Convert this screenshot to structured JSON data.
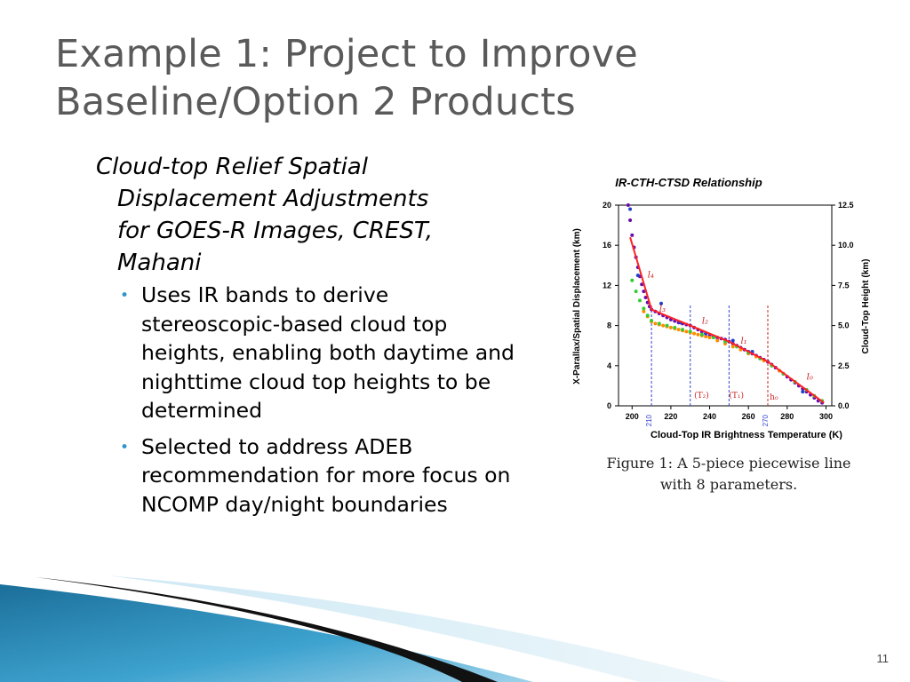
{
  "slide": {
    "title_line1": "Example 1: Project to Improve",
    "title_line2": "Baseline/Option 2 Products",
    "heading_lines": [
      "Cloud-top Relief Spatial",
      "Displacement Adjustments",
      "for GOES-R Images, CREST,",
      "Mahani"
    ],
    "bullets": [
      "Uses IR bands to derive stereoscopic-based cloud top heights, enabling both daytime and nighttime cloud top heights to be determined",
      "Selected to address ADEB recommendation for more focus on NCOMP day/night boundaries"
    ],
    "page_number": "11",
    "accent_color": "#2e95c9"
  },
  "figure": {
    "caption_line1": "Figure 1: A 5-piece piecewise line",
    "caption_line2": "with 8 parameters."
  },
  "chart_data": {
    "type": "scatter",
    "title": "IR-CTH-CTSD Relationship",
    "xlabel": "Cloud-Top IR Brightness Temperature (K)",
    "ylabel": "X-Parallax/Spatial Displacement (km)",
    "y2label": "Cloud-Top Height (km)",
    "xlim": [
      193,
      303
    ],
    "ylim": [
      0,
      20
    ],
    "y2lim": [
      0,
      12.5
    ],
    "x_ticks": [
      "200",
      "220",
      "240",
      "260",
      "280",
      "300"
    ],
    "y_ticks": [
      "0",
      "4",
      "8",
      "12",
      "16",
      "20"
    ],
    "y2_ticks": [
      "0.0",
      "2.5",
      "5.0",
      "7.5",
      "10.0",
      "12.5"
    ],
    "vline_labels": [
      "210",
      "270"
    ],
    "region_labels": [
      "(T₂)",
      "(T₁)",
      "h₀"
    ],
    "segment_labels": [
      "l₄",
      "l₃",
      "l₂",
      "l₁",
      "l₀"
    ],
    "vlines": [
      {
        "x": 210,
        "color": "#3344cc",
        "dash": true
      },
      {
        "x": 230,
        "color": "#3344cc",
        "dash": true
      },
      {
        "x": 250,
        "color": "#3344cc",
        "dash": true
      },
      {
        "x": 270,
        "color": "#cc2222",
        "dash": true
      }
    ],
    "piecewise_line": {
      "x": [
        199,
        210,
        230,
        250,
        270,
        299
      ],
      "y": [
        16.8,
        9.6,
        8.0,
        6.4,
        4.4,
        0.3
      ],
      "color": "#ff2222"
    },
    "series": [
      {
        "color": "#6a0dad",
        "x": [
          198,
          199,
          200,
          201,
          202,
          203,
          204,
          205,
          206,
          207,
          208,
          209,
          210,
          212,
          214,
          216,
          218,
          220,
          222,
          224,
          226,
          228,
          230,
          232,
          234,
          236,
          238,
          240,
          242,
          244,
          246,
          248,
          250,
          252,
          254,
          256,
          258,
          260,
          262,
          264,
          266,
          268,
          270,
          272,
          274,
          276,
          278,
          280,
          282,
          284,
          286,
          288,
          290,
          292,
          294,
          296,
          298
        ],
        "y": [
          20,
          18.5,
          17,
          15.8,
          14.8,
          13.8,
          12.9,
          12.1,
          11.4,
          10.8,
          10.3,
          9.9,
          9.6,
          9.4,
          9.2,
          9.0,
          8.8,
          8.6,
          8.45,
          8.3,
          8.2,
          8.1,
          8.0,
          7.8,
          7.6,
          7.4,
          7.2,
          7.0,
          6.9,
          6.8,
          6.7,
          6.6,
          6.4,
          6.2,
          6.0,
          5.8,
          5.6,
          5.4,
          5.2,
          5.0,
          4.8,
          4.6,
          4.4,
          4.1,
          3.8,
          3.5,
          3.2,
          2.9,
          2.6,
          2.3,
          2.0,
          1.7,
          1.4,
          1.1,
          0.8,
          0.5,
          0.3
        ]
      },
      {
        "color": "#ff8c00",
        "x": [
          206,
          208,
          210,
          212,
          214,
          216,
          218,
          220,
          222,
          224,
          226,
          228,
          230,
          232,
          234,
          236,
          238,
          240,
          244,
          248,
          252,
          256,
          260,
          264,
          268,
          272,
          276
        ],
        "y": [
          9.4,
          8.9,
          8.4,
          8.2,
          8.1,
          8.0,
          7.9,
          7.8,
          7.7,
          7.6,
          7.5,
          7.4,
          7.3,
          7.2,
          7.1,
          7.0,
          6.9,
          6.8,
          6.5,
          6.2,
          5.9,
          5.6,
          5.2,
          4.9,
          4.5,
          4.0,
          3.5
        ]
      },
      {
        "color": "#33cc33",
        "x": [
          200,
          202,
          204,
          206,
          208,
          210,
          214,
          218,
          222,
          226,
          230,
          236,
          242,
          248,
          254,
          260,
          266,
          272,
          278,
          284,
          290,
          294,
          298
        ],
        "y": [
          12.5,
          11.4,
          10.5,
          9.7,
          9.0,
          8.5,
          8.2,
          8.0,
          7.8,
          7.6,
          7.4,
          7.1,
          6.8,
          6.4,
          5.9,
          5.3,
          4.7,
          4.0,
          3.2,
          2.4,
          1.6,
          1.0,
          0.5
        ]
      },
      {
        "color": "#1f3fcf",
        "x": [
          199,
          203,
          215,
          225,
          238,
          252,
          262,
          288
        ],
        "y": [
          19.6,
          13.0,
          10.2,
          8.3,
          7.2,
          6.5,
          5.4,
          1.4
        ]
      }
    ]
  }
}
